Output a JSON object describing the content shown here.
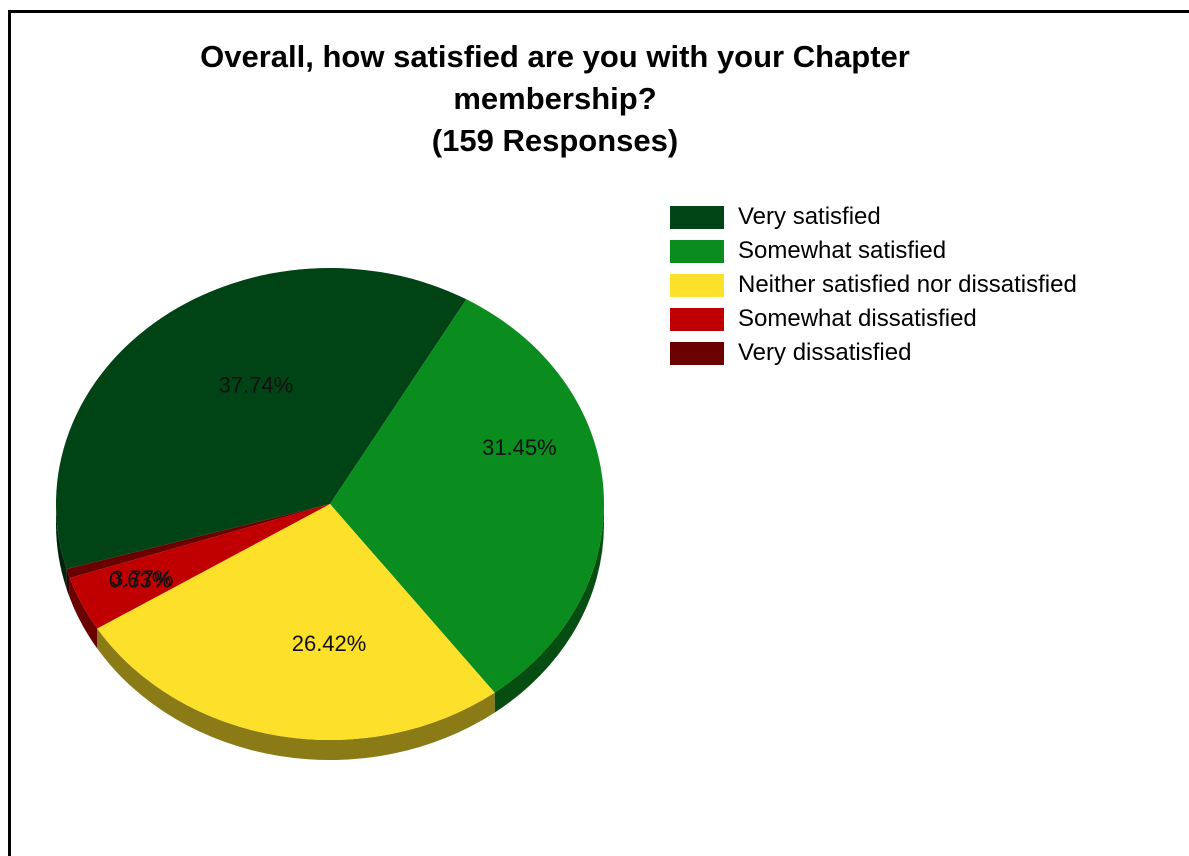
{
  "chart_data": {
    "type": "pie",
    "title_lines": [
      "Overall, how satisfied are you with your Chapter",
      "membership?",
      "(159  Responses)"
    ],
    "categories": [
      "Very satisfied",
      "Somewhat satisfied",
      "Neither satisfied nor dissatisfied",
      "Somewhat dissatisfied",
      "Very dissatisfied"
    ],
    "values": [
      37.74,
      31.45,
      26.42,
      3.77,
      0.63
    ],
    "value_labels": [
      "37.74%",
      "31.45%",
      "26.42%",
      "3.77%",
      "0.63%"
    ],
    "colors": [
      "#004314",
      "#0a8c1e",
      "#fde02a",
      "#c00000",
      "#6a0000"
    ],
    "legend_position": "top-right",
    "style": "3d"
  }
}
